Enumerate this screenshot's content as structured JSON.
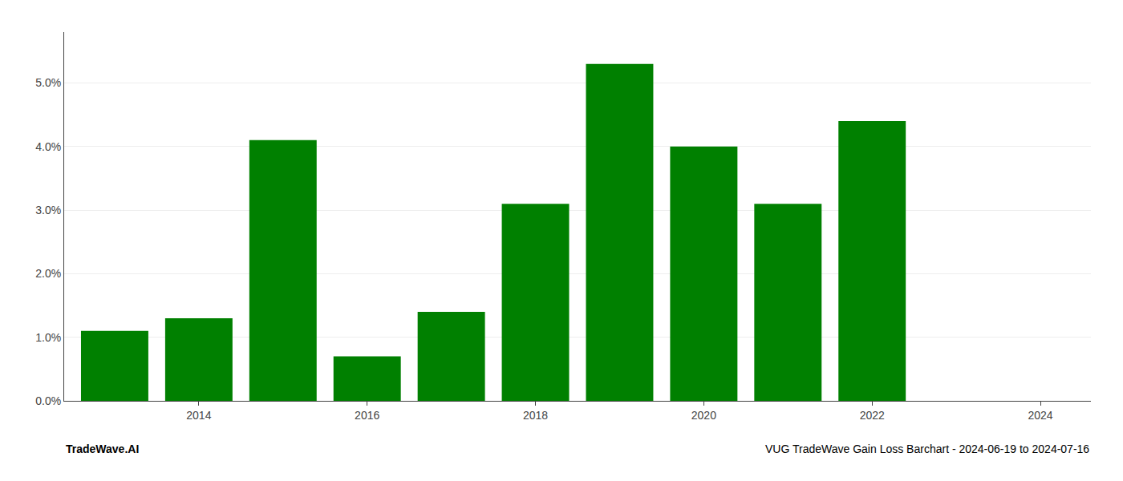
{
  "chart_data": {
    "type": "bar",
    "x": [
      2013,
      2014,
      2015,
      2016,
      2017,
      2018,
      2019,
      2020,
      2021,
      2022,
      2023
    ],
    "values": [
      0.011,
      0.013,
      0.041,
      0.007,
      0.014,
      0.031,
      0.053,
      0.04,
      0.031,
      0.044,
      0.0
    ],
    "color": "#008000",
    "xlim": [
      2012.4,
      2024.6
    ],
    "xticks": [
      2014,
      2016,
      2018,
      2020,
      2022,
      2024
    ],
    "ylim": [
      0,
      0.058
    ],
    "yticks": [
      {
        "value": 0.0,
        "label": "0.0%"
      },
      {
        "value": 0.01,
        "label": "1.0%"
      },
      {
        "value": 0.02,
        "label": "2.0%"
      },
      {
        "value": 0.03,
        "label": "3.0%"
      },
      {
        "value": 0.04,
        "label": "4.0%"
      },
      {
        "value": 0.05,
        "label": "5.0%"
      }
    ],
    "grid": true,
    "annotations": [
      "TradeWave.AI",
      "VUG TradeWave Gain Loss Barchart - 2024-06-19 to 2024-07-16"
    ]
  }
}
